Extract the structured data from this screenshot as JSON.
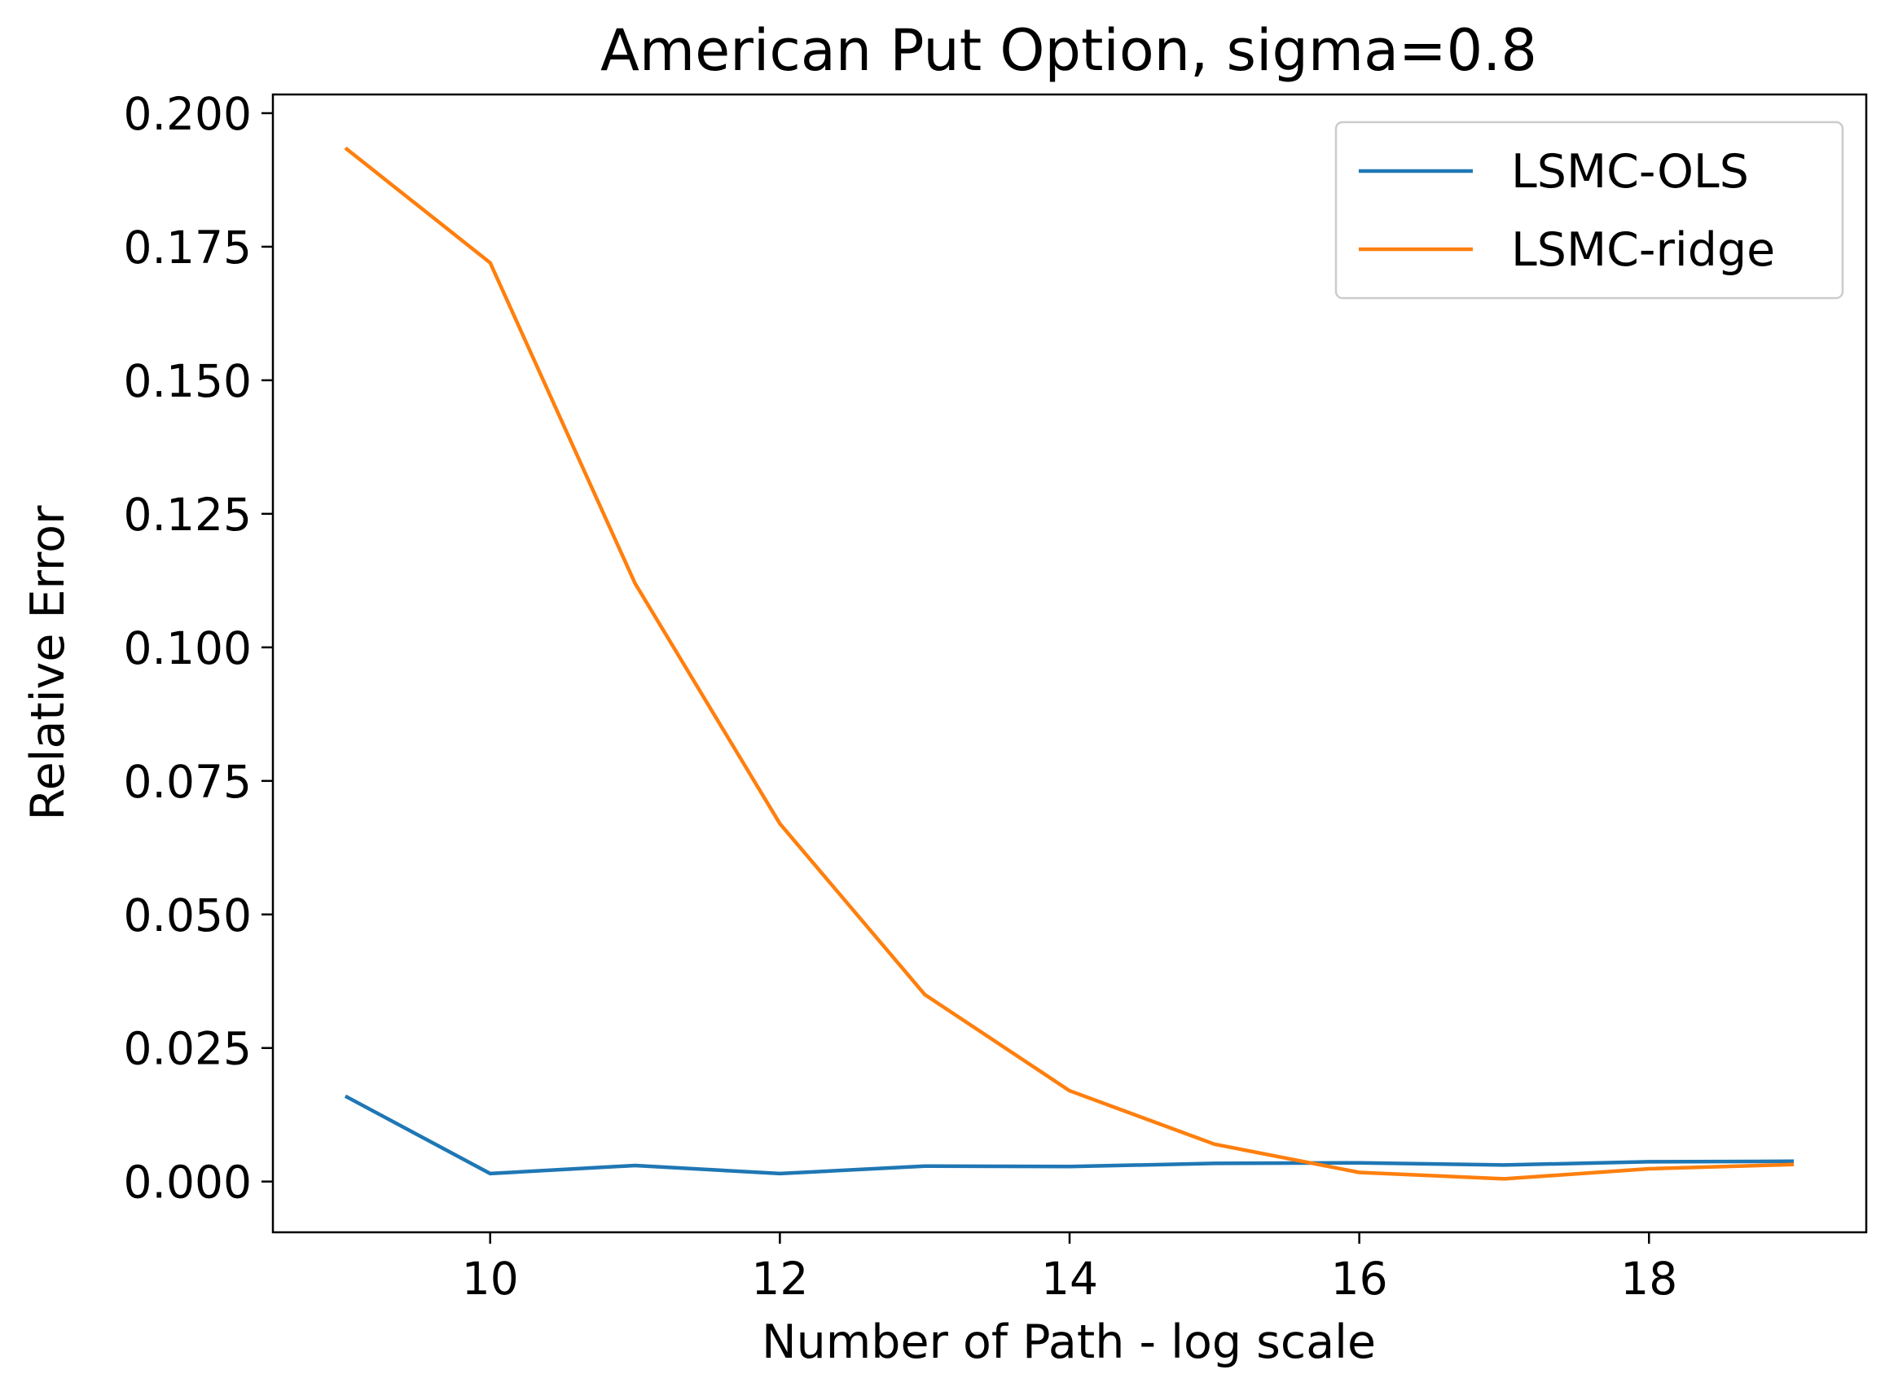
{
  "chart_data": {
    "type": "line",
    "title": "American Put Option, sigma=0.8",
    "xlabel": "Number of Path - log scale",
    "ylabel": "Relative Error",
    "xlim": [
      8.5,
      19.5
    ],
    "ylim": [
      -0.0095,
      0.2035
    ],
    "xticks": [
      10,
      12,
      14,
      16,
      18
    ],
    "xtick_labels": [
      "10",
      "12",
      "14",
      "16",
      "18"
    ],
    "yticks": [
      0.0,
      0.025,
      0.05,
      0.075,
      0.1,
      0.125,
      0.15,
      0.175,
      0.2
    ],
    "ytick_labels": [
      "0.000",
      "0.025",
      "0.050",
      "0.075",
      "0.100",
      "0.125",
      "0.150",
      "0.175",
      "0.200"
    ],
    "grid": false,
    "legend_position": "top-right",
    "x": [
      9,
      10,
      11,
      12,
      13,
      14,
      15,
      16,
      17,
      18,
      19
    ],
    "series": [
      {
        "name": "LSMC-OLS",
        "color": "#1f77b4",
        "values": [
          0.016,
          0.0015,
          0.003,
          0.0015,
          0.0029,
          0.0028,
          0.0034,
          0.0035,
          0.0031,
          0.0037,
          0.0038
        ]
      },
      {
        "name": "LSMC-ridge",
        "color": "#ff7f0e",
        "values": [
          0.1935,
          0.172,
          0.112,
          0.067,
          0.035,
          0.017,
          0.007,
          0.0017,
          0.0005,
          0.0024,
          0.0032
        ]
      }
    ]
  }
}
